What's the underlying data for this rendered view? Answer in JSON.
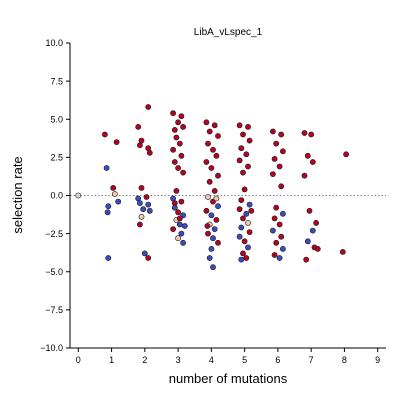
{
  "chart_data": {
    "type": "scatter",
    "title": "LibA_vLspec_1",
    "xlabel": "number of mutations",
    "ylabel": "selection rate",
    "xlim": [
      -0.25,
      9.25
    ],
    "ylim": [
      -10.0,
      10.0
    ],
    "xticks": [
      "0",
      "1",
      "2",
      "3",
      "4",
      "5",
      "6",
      "7",
      "8",
      "9"
    ],
    "yticks": [
      "10.0",
      "7.5",
      "5.0",
      "2.5",
      "0.0",
      "−2.5",
      "−5.0",
      "−7.5",
      "−10.0"
    ],
    "grid": false,
    "reference_line": {
      "y": 0.0,
      "style": "dotted",
      "color": "#808080"
    },
    "color_scale": {
      "low": "#3b4cc0",
      "mid": "#f2c7b0",
      "high": "#b40426"
    },
    "points": [
      {
        "x": 0.0,
        "y": 0.0,
        "c": "#d9d9d9"
      },
      {
        "x": 0.8,
        "y": 4.0,
        "c": "#b40426"
      },
      {
        "x": 0.85,
        "y": 1.8,
        "c": "#3b4cc0"
      },
      {
        "x": 0.9,
        "y": -0.7,
        "c": "#3b4cc0"
      },
      {
        "x": 0.88,
        "y": -1.1,
        "c": "#3b4cc0"
      },
      {
        "x": 0.9,
        "y": -4.1,
        "c": "#3b4cc0"
      },
      {
        "x": 1.05,
        "y": 0.5,
        "c": "#b40426"
      },
      {
        "x": 1.1,
        "y": 0.1,
        "c": "#f2c7b0"
      },
      {
        "x": 1.15,
        "y": 3.5,
        "c": "#b40426"
      },
      {
        "x": 1.2,
        "y": -0.4,
        "c": "#3b4cc0"
      },
      {
        "x": 1.8,
        "y": 4.5,
        "c": "#b40426"
      },
      {
        "x": 2.1,
        "y": 5.8,
        "c": "#b40426"
      },
      {
        "x": 1.85,
        "y": 3.3,
        "c": "#b40426"
      },
      {
        "x": 1.9,
        "y": 3.6,
        "c": "#b40426"
      },
      {
        "x": 2.15,
        "y": 2.8,
        "c": "#b40426"
      },
      {
        "x": 2.1,
        "y": 3.1,
        "c": "#b40426"
      },
      {
        "x": 1.9,
        "y": 0.5,
        "c": "#b40426"
      },
      {
        "x": 1.8,
        "y": -0.2,
        "c": "#3b4cc0"
      },
      {
        "x": 1.85,
        "y": -0.5,
        "c": "#3b4cc0"
      },
      {
        "x": 1.95,
        "y": -0.9,
        "c": "#3b4cc0"
      },
      {
        "x": 1.9,
        "y": -1.4,
        "c": "#f2c7b0"
      },
      {
        "x": 2.05,
        "y": -0.1,
        "c": "#b40426"
      },
      {
        "x": 2.1,
        "y": -0.6,
        "c": "#3b4cc0"
      },
      {
        "x": 2.15,
        "y": -1.0,
        "c": "#3b4cc0"
      },
      {
        "x": 1.85,
        "y": -1.9,
        "c": "#b40426"
      },
      {
        "x": 2.0,
        "y": -3.8,
        "c": "#3b4cc0"
      },
      {
        "x": 2.1,
        "y": -4.1,
        "c": "#b40426"
      },
      {
        "x": 2.85,
        "y": 5.4,
        "c": "#b40426"
      },
      {
        "x": 3.1,
        "y": 5.2,
        "c": "#b40426"
      },
      {
        "x": 3.0,
        "y": 4.8,
        "c": "#b40426"
      },
      {
        "x": 2.9,
        "y": 4.3,
        "c": "#b40426"
      },
      {
        "x": 3.15,
        "y": 4.5,
        "c": "#b40426"
      },
      {
        "x": 2.95,
        "y": 3.8,
        "c": "#b40426"
      },
      {
        "x": 3.05,
        "y": 3.4,
        "c": "#b40426"
      },
      {
        "x": 2.85,
        "y": 3.0,
        "c": "#b40426"
      },
      {
        "x": 3.1,
        "y": 2.6,
        "c": "#b40426"
      },
      {
        "x": 2.9,
        "y": 2.2,
        "c": "#b40426"
      },
      {
        "x": 3.0,
        "y": 1.8,
        "c": "#b40426"
      },
      {
        "x": 3.15,
        "y": 1.5,
        "c": "#b40426"
      },
      {
        "x": 2.95,
        "y": 0.3,
        "c": "#b40426"
      },
      {
        "x": 2.85,
        "y": -0.2,
        "c": "#3b4cc0"
      },
      {
        "x": 3.1,
        "y": -0.4,
        "c": "#b40426"
      },
      {
        "x": 2.9,
        "y": -0.8,
        "c": "#3b4cc0"
      },
      {
        "x": 3.0,
        "y": -1.1,
        "c": "#b40426"
      },
      {
        "x": 3.15,
        "y": -1.3,
        "c": "#3b4cc0"
      },
      {
        "x": 2.95,
        "y": -1.6,
        "c": "#f2c7b0"
      },
      {
        "x": 3.05,
        "y": -1.9,
        "c": "#3b4cc0"
      },
      {
        "x": 2.85,
        "y": -2.2,
        "c": "#b40426"
      },
      {
        "x": 3.1,
        "y": -2.5,
        "c": "#3b4cc0"
      },
      {
        "x": 3.0,
        "y": -2.8,
        "c": "#f2c7b0"
      },
      {
        "x": 3.15,
        "y": -3.1,
        "c": "#3b4cc0"
      },
      {
        "x": 2.9,
        "y": -0.5,
        "c": "#b40426"
      },
      {
        "x": 3.05,
        "y": -1.5,
        "c": "#b40426"
      },
      {
        "x": 3.2,
        "y": -2.0,
        "c": "#3b4cc0"
      },
      {
        "x": 3.85,
        "y": 4.8,
        "c": "#b40426"
      },
      {
        "x": 4.1,
        "y": 4.6,
        "c": "#b40426"
      },
      {
        "x": 3.95,
        "y": 4.2,
        "c": "#b40426"
      },
      {
        "x": 4.2,
        "y": 3.9,
        "c": "#b40426"
      },
      {
        "x": 3.9,
        "y": 3.4,
        "c": "#b40426"
      },
      {
        "x": 4.05,
        "y": 3.0,
        "c": "#b40426"
      },
      {
        "x": 4.15,
        "y": 2.6,
        "c": "#b40426"
      },
      {
        "x": 3.85,
        "y": 2.2,
        "c": "#b40426"
      },
      {
        "x": 4.0,
        "y": 1.8,
        "c": "#b40426"
      },
      {
        "x": 4.2,
        "y": 1.3,
        "c": "#b40426"
      },
      {
        "x": 3.95,
        "y": 0.9,
        "c": "#b40426"
      },
      {
        "x": 4.1,
        "y": 0.3,
        "c": "#b40426"
      },
      {
        "x": 3.9,
        "y": -0.1,
        "c": "#f2c7b0"
      },
      {
        "x": 4.05,
        "y": -0.4,
        "c": "#b40426"
      },
      {
        "x": 4.2,
        "y": -0.7,
        "c": "#3b4cc0"
      },
      {
        "x": 3.85,
        "y": -1.0,
        "c": "#b40426"
      },
      {
        "x": 4.0,
        "y": -1.3,
        "c": "#3b4cc0"
      },
      {
        "x": 4.15,
        "y": -1.6,
        "c": "#b40426"
      },
      {
        "x": 3.95,
        "y": -1.9,
        "c": "#f2c7b0"
      },
      {
        "x": 4.1,
        "y": -2.2,
        "c": "#3b4cc0"
      },
      {
        "x": 3.9,
        "y": -2.5,
        "c": "#b40426"
      },
      {
        "x": 4.05,
        "y": -2.8,
        "c": "#3b4cc0"
      },
      {
        "x": 4.2,
        "y": -3.1,
        "c": "#b40426"
      },
      {
        "x": 4.0,
        "y": -3.5,
        "c": "#3b4cc0"
      },
      {
        "x": 3.95,
        "y": -4.1,
        "c": "#3b4cc0"
      },
      {
        "x": 4.05,
        "y": -4.7,
        "c": "#3b4cc0"
      },
      {
        "x": 4.15,
        "y": -0.2,
        "c": "#f2c7b0"
      },
      {
        "x": 3.88,
        "y": -2.0,
        "c": "#b40426"
      },
      {
        "x": 4.85,
        "y": 4.6,
        "c": "#b40426"
      },
      {
        "x": 5.1,
        "y": 4.5,
        "c": "#b40426"
      },
      {
        "x": 4.95,
        "y": 4.0,
        "c": "#b40426"
      },
      {
        "x": 5.15,
        "y": 3.6,
        "c": "#b40426"
      },
      {
        "x": 4.9,
        "y": 3.1,
        "c": "#b40426"
      },
      {
        "x": 5.05,
        "y": 2.7,
        "c": "#b40426"
      },
      {
        "x": 4.85,
        "y": 2.3,
        "c": "#b40426"
      },
      {
        "x": 5.1,
        "y": 1.9,
        "c": "#b40426"
      },
      {
        "x": 4.95,
        "y": 1.5,
        "c": "#b40426"
      },
      {
        "x": 5.0,
        "y": 0.4,
        "c": "#b40426"
      },
      {
        "x": 4.9,
        "y": -0.3,
        "c": "#b40426"
      },
      {
        "x": 5.15,
        "y": -0.6,
        "c": "#3b4cc0"
      },
      {
        "x": 4.85,
        "y": -0.9,
        "c": "#b40426"
      },
      {
        "x": 5.05,
        "y": -1.2,
        "c": "#3b4cc0"
      },
      {
        "x": 4.95,
        "y": -1.5,
        "c": "#b40426"
      },
      {
        "x": 5.1,
        "y": -1.8,
        "c": "#f2c7b0"
      },
      {
        "x": 4.9,
        "y": -2.1,
        "c": "#3b4cc0"
      },
      {
        "x": 5.15,
        "y": -2.4,
        "c": "#b40426"
      },
      {
        "x": 4.85,
        "y": -2.7,
        "c": "#3b4cc0"
      },
      {
        "x": 5.0,
        "y": -3.0,
        "c": "#b40426"
      },
      {
        "x": 5.1,
        "y": -3.4,
        "c": "#3b4cc0"
      },
      {
        "x": 4.95,
        "y": -3.8,
        "c": "#b40426"
      },
      {
        "x": 4.9,
        "y": -4.2,
        "c": "#3b4cc0"
      },
      {
        "x": 5.05,
        "y": -4.1,
        "c": "#b40426"
      },
      {
        "x": 5.2,
        "y": -1.0,
        "c": "#b40426"
      },
      {
        "x": 5.85,
        "y": 4.2,
        "c": "#b40426"
      },
      {
        "x": 6.1,
        "y": 4.0,
        "c": "#b40426"
      },
      {
        "x": 5.95,
        "y": 3.4,
        "c": "#b40426"
      },
      {
        "x": 6.15,
        "y": 2.9,
        "c": "#b40426"
      },
      {
        "x": 5.9,
        "y": 2.4,
        "c": "#b40426"
      },
      {
        "x": 6.05,
        "y": 1.9,
        "c": "#b40426"
      },
      {
        "x": 5.85,
        "y": 1.4,
        "c": "#b40426"
      },
      {
        "x": 6.1,
        "y": 0.6,
        "c": "#b40426"
      },
      {
        "x": 5.95,
        "y": -0.8,
        "c": "#b40426"
      },
      {
        "x": 6.15,
        "y": -1.2,
        "c": "#3b4cc0"
      },
      {
        "x": 5.9,
        "y": -1.5,
        "c": "#b40426"
      },
      {
        "x": 6.05,
        "y": -1.9,
        "c": "#b40426"
      },
      {
        "x": 5.85,
        "y": -2.3,
        "c": "#3b4cc0"
      },
      {
        "x": 6.1,
        "y": -2.7,
        "c": "#b40426"
      },
      {
        "x": 5.95,
        "y": -3.1,
        "c": "#b40426"
      },
      {
        "x": 6.15,
        "y": -3.5,
        "c": "#3b4cc0"
      },
      {
        "x": 5.9,
        "y": -3.9,
        "c": "#b40426"
      },
      {
        "x": 6.05,
        "y": -4.1,
        "c": "#3b4cc0"
      },
      {
        "x": 6.8,
        "y": 4.1,
        "c": "#b40426"
      },
      {
        "x": 7.0,
        "y": 4.0,
        "c": "#b40426"
      },
      {
        "x": 6.9,
        "y": 2.6,
        "c": "#b40426"
      },
      {
        "x": 7.05,
        "y": 2.2,
        "c": "#b40426"
      },
      {
        "x": 6.8,
        "y": 1.3,
        "c": "#b40426"
      },
      {
        "x": 6.95,
        "y": -1.0,
        "c": "#b40426"
      },
      {
        "x": 7.15,
        "y": -1.8,
        "c": "#b40426"
      },
      {
        "x": 7.05,
        "y": -2.3,
        "c": "#3b4cc0"
      },
      {
        "x": 6.9,
        "y": -3.0,
        "c": "#3b4cc0"
      },
      {
        "x": 7.1,
        "y": -3.4,
        "c": "#b40426"
      },
      {
        "x": 7.2,
        "y": -3.5,
        "c": "#b40426"
      },
      {
        "x": 6.85,
        "y": -4.2,
        "c": "#b40426"
      },
      {
        "x": 8.05,
        "y": 2.7,
        "c": "#b40426"
      },
      {
        "x": 7.95,
        "y": -3.7,
        "c": "#b40426"
      }
    ]
  }
}
